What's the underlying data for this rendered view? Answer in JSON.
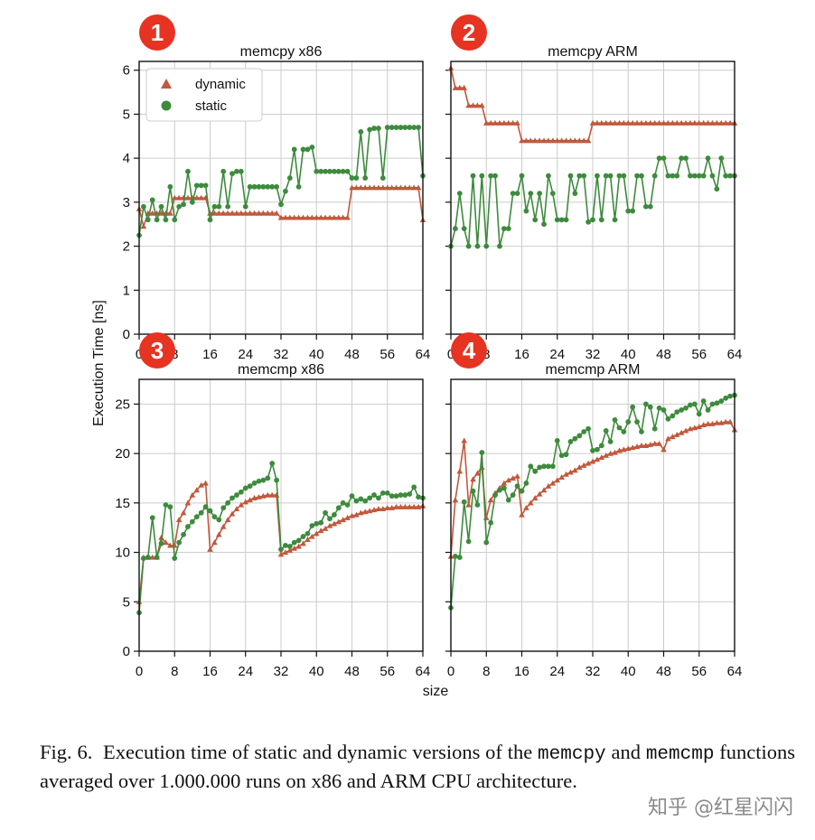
{
  "chart_data": [
    {
      "type": "line",
      "badge": "1",
      "title": "memcpy x86",
      "xlim": [
        0,
        64
      ],
      "ylim": [
        0,
        6.2
      ],
      "xticks": [
        0,
        8,
        16,
        24,
        32,
        40,
        48,
        56,
        64
      ],
      "yticks": [
        0,
        1,
        2,
        3,
        4,
        5,
        6
      ],
      "grid": true,
      "legend": {
        "position": "top-left",
        "entries": [
          "dynamic",
          "static"
        ]
      },
      "series": [
        {
          "name": "dynamic",
          "marker": "triangle",
          "color": "#c1583c",
          "values": [
            2.85,
            2.45,
            2.75,
            2.75,
            2.75,
            2.75,
            2.75,
            2.75,
            3.1,
            3.1,
            3.1,
            3.1,
            3.1,
            3.1,
            3.1,
            3.1,
            2.75,
            2.75,
            2.75,
            2.75,
            2.75,
            2.75,
            2.75,
            2.75,
            2.75,
            2.75,
            2.75,
            2.75,
            2.75,
            2.75,
            2.75,
            2.75,
            2.65,
            2.65,
            2.65,
            2.65,
            2.65,
            2.65,
            2.65,
            2.65,
            2.65,
            2.65,
            2.65,
            2.65,
            2.65,
            2.65,
            2.65,
            2.65,
            3.33,
            3.33,
            3.33,
            3.33,
            3.33,
            3.33,
            3.33,
            3.33,
            3.33,
            3.33,
            3.33,
            3.33,
            3.33,
            3.33,
            3.33,
            3.33,
            2.6
          ]
        },
        {
          "name": "static",
          "marker": "circle",
          "color": "#3d8b3d",
          "values": [
            2.25,
            2.9,
            2.6,
            3.05,
            2.6,
            2.9,
            2.6,
            3.35,
            2.6,
            2.9,
            2.95,
            3.7,
            3.0,
            3.38,
            3.38,
            3.38,
            2.6,
            2.9,
            2.9,
            3.7,
            2.9,
            3.65,
            3.7,
            3.7,
            2.9,
            3.35,
            3.35,
            3.35,
            3.35,
            3.35,
            3.35,
            3.35,
            2.95,
            3.25,
            3.55,
            4.2,
            3.35,
            4.2,
            4.2,
            4.25,
            3.7,
            3.7,
            3.7,
            3.7,
            3.7,
            3.7,
            3.7,
            3.7,
            3.55,
            3.55,
            4.6,
            3.55,
            4.65,
            4.68,
            4.68,
            3.55,
            4.7,
            4.7,
            4.7,
            4.7,
            4.7,
            4.7,
            4.7,
            4.7,
            3.6
          ]
        }
      ]
    },
    {
      "type": "line",
      "badge": "2",
      "title": "memcpy ARM",
      "xlim": [
        0,
        64
      ],
      "ylim": [
        0,
        6.2
      ],
      "xticks": [
        0,
        8,
        16,
        24,
        32,
        40,
        48,
        56,
        64
      ],
      "yticks": [
        0,
        1,
        2,
        3,
        4,
        5,
        6
      ],
      "grid": true,
      "series": [
        {
          "name": "dynamic",
          "marker": "triangle",
          "color": "#c1583c",
          "values": [
            6.05,
            5.6,
            5.6,
            5.6,
            5.2,
            5.2,
            5.2,
            5.2,
            4.8,
            4.8,
            4.8,
            4.8,
            4.8,
            4.8,
            4.8,
            4.8,
            4.4,
            4.4,
            4.4,
            4.4,
            4.4,
            4.4,
            4.4,
            4.4,
            4.4,
            4.4,
            4.4,
            4.4,
            4.4,
            4.4,
            4.4,
            4.4,
            4.8,
            4.8,
            4.8,
            4.8,
            4.8,
            4.8,
            4.8,
            4.8,
            4.8,
            4.8,
            4.8,
            4.8,
            4.8,
            4.8,
            4.8,
            4.8,
            4.8,
            4.8,
            4.8,
            4.8,
            4.8,
            4.8,
            4.8,
            4.8,
            4.8,
            4.8,
            4.8,
            4.8,
            4.8,
            4.8,
            4.8,
            4.8,
            4.8
          ]
        },
        {
          "name": "static",
          "marker": "circle",
          "color": "#3d8b3d",
          "values": [
            2.0,
            2.4,
            3.2,
            2.4,
            2.0,
            3.6,
            2.0,
            3.6,
            2.0,
            3.6,
            3.6,
            2.0,
            2.4,
            2.4,
            3.2,
            3.2,
            3.6,
            2.8,
            3.2,
            2.6,
            3.2,
            2.5,
            3.6,
            3.2,
            2.6,
            2.6,
            2.6,
            3.6,
            3.2,
            3.6,
            3.6,
            2.55,
            2.6,
            3.6,
            2.6,
            3.6,
            3.6,
            2.6,
            3.6,
            3.6,
            2.8,
            2.8,
            3.6,
            3.6,
            2.9,
            2.9,
            3.6,
            4.0,
            4.0,
            3.6,
            3.6,
            3.6,
            4.0,
            4.0,
            3.6,
            3.6,
            3.6,
            3.6,
            4.0,
            3.6,
            3.3,
            4.0,
            3.6,
            3.6,
            3.6
          ]
        }
      ]
    },
    {
      "type": "line",
      "badge": "3",
      "title": "memcmp x86",
      "xlim": [
        0,
        64
      ],
      "ylim": [
        0,
        27.5
      ],
      "xticks": [
        0,
        8,
        16,
        24,
        32,
        40,
        48,
        56,
        64
      ],
      "yticks": [
        0,
        5,
        10,
        15,
        20,
        25
      ],
      "grid": true,
      "series": [
        {
          "name": "dynamic",
          "marker": "triangle",
          "color": "#c1583c",
          "values": [
            5.0,
            9.5,
            9.5,
            9.5,
            9.5,
            11.5,
            11.0,
            10.7,
            10.7,
            13.3,
            14.0,
            15.0,
            15.8,
            16.3,
            16.8,
            17.0,
            10.3,
            11.0,
            11.8,
            12.6,
            13.3,
            13.9,
            14.4,
            14.8,
            15.1,
            15.3,
            15.5,
            15.6,
            15.7,
            15.8,
            15.8,
            15.8,
            9.8,
            10.0,
            10.2,
            10.4,
            10.6,
            10.9,
            11.3,
            11.6,
            11.9,
            12.2,
            12.4,
            12.7,
            12.9,
            13.1,
            13.3,
            13.5,
            13.7,
            13.8,
            14.0,
            14.1,
            14.2,
            14.3,
            14.4,
            14.4,
            14.5,
            14.5,
            14.6,
            14.6,
            14.6,
            14.6,
            14.6,
            14.6,
            14.7
          ]
        },
        {
          "name": "static",
          "marker": "circle",
          "color": "#3d8b3d",
          "values": [
            3.9,
            9.4,
            9.5,
            13.5,
            9.5,
            10.9,
            14.8,
            14.6,
            9.4,
            11.0,
            11.8,
            12.6,
            13.1,
            13.6,
            14.0,
            14.6,
            14.2,
            13.6,
            13.3,
            14.5,
            15.0,
            15.5,
            15.8,
            16.1,
            16.5,
            16.7,
            17.0,
            17.2,
            17.3,
            17.5,
            19.0,
            17.3,
            10.3,
            10.7,
            10.6,
            11.0,
            11.2,
            11.6,
            11.9,
            12.7,
            12.9,
            13.0,
            14.0,
            13.4,
            13.8,
            14.5,
            15.0,
            14.8,
            15.7,
            15.2,
            15.4,
            15.2,
            15.5,
            15.8,
            15.5,
            16.0,
            16.0,
            15.7,
            15.7,
            15.8,
            15.8,
            15.9,
            16.6,
            15.6,
            15.5
          ]
        }
      ]
    },
    {
      "type": "line",
      "badge": "4",
      "title": "memcmp ARM",
      "xlim": [
        0,
        64
      ],
      "ylim": [
        0,
        27.5
      ],
      "xticks": [
        0,
        8,
        16,
        24,
        32,
        40,
        48,
        56,
        64
      ],
      "yticks": [
        0,
        5,
        10,
        15,
        20,
        25
      ],
      "grid": true,
      "series": [
        {
          "name": "dynamic",
          "marker": "triangle",
          "color": "#c1583c",
          "values": [
            9.6,
            15.3,
            18.2,
            21.3,
            14.8,
            17.4,
            18.0,
            18.6,
            13.5,
            15.3,
            16.0,
            16.5,
            17.0,
            17.3,
            17.5,
            17.7,
            13.8,
            14.5,
            15.0,
            15.5,
            15.9,
            16.3,
            16.7,
            17.0,
            17.3,
            17.6,
            17.9,
            18.1,
            18.3,
            18.6,
            18.8,
            19.0,
            19.2,
            19.4,
            19.6,
            19.8,
            20.0,
            20.1,
            20.3,
            20.4,
            20.5,
            20.6,
            20.7,
            20.8,
            20.8,
            20.9,
            21.0,
            21.0,
            20.4,
            21.5,
            21.7,
            21.9,
            22.1,
            22.3,
            22.5,
            22.6,
            22.7,
            22.9,
            23.0,
            23.0,
            23.1,
            23.1,
            23.2,
            23.2,
            22.4
          ]
        },
        {
          "name": "static",
          "marker": "circle",
          "color": "#3d8b3d",
          "values": [
            4.4,
            9.6,
            9.5,
            15.1,
            11.1,
            16.2,
            14.8,
            20.1,
            11.0,
            13.0,
            15.8,
            16.3,
            16.5,
            15.3,
            15.8,
            16.7,
            16.2,
            17.0,
            18.7,
            18.2,
            18.6,
            18.7,
            18.7,
            18.7,
            21.3,
            19.8,
            19.9,
            21.2,
            21.5,
            21.8,
            22.2,
            22.5,
            20.3,
            20.4,
            20.8,
            22.3,
            21.2,
            23.4,
            22.6,
            22.2,
            23.2,
            24.7,
            23.2,
            22.2,
            25.0,
            24.7,
            22.5,
            24.6,
            24.4,
            23.5,
            23.8,
            24.2,
            24.4,
            24.6,
            24.9,
            25.0,
            24.0,
            25.3,
            24.4,
            25.0,
            25.1,
            25.3,
            25.6,
            25.8,
            25.9
          ]
        }
      ]
    }
  ],
  "shared_labels": {
    "xlabel": "size",
    "ylabel": "Execution Time [ns]"
  },
  "caption": {
    "prefix": "Fig. 6.",
    "part1": "Execution time of static and dynamic versions of the",
    "code1": "memcpy",
    "part2": "and",
    "code2": "memcmp",
    "part3": "functions averaged over 1.000.000 runs on x86 and ARM CPU architecture."
  },
  "watermark": "知乎 @红星闪闪",
  "colors": {
    "badge": "#e63322",
    "dynamic": "#c1583c",
    "static": "#3d8b3d",
    "grid": "#cccccc"
  }
}
